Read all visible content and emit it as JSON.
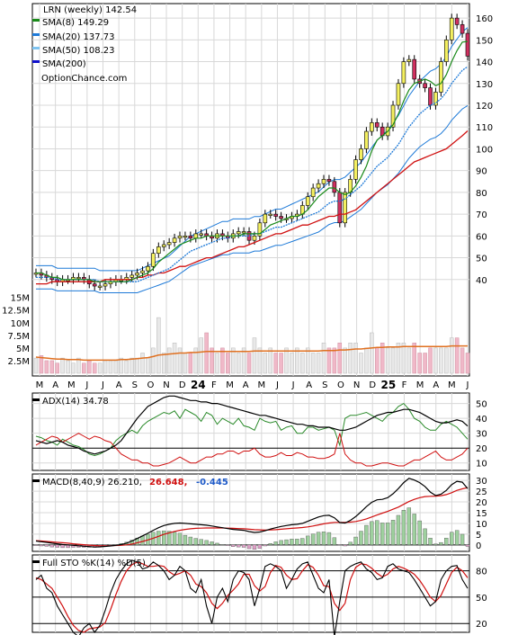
{
  "chart_data": {
    "type": "line",
    "symbol": "LRN",
    "legend": {
      "title": "LRN (weekly) 142.54",
      "sma8": "SMA(8) 149.29",
      "sma20": "SMA(20) 137.73",
      "sma50": "SMA(50) 108.23",
      "sma200": "SMA(200)",
      "site": "OptionChance.com"
    },
    "colors": {
      "sma8": "#1a8a1a",
      "sma20": "#1e7ad8",
      "sma50": "#7ec3f0",
      "sma200": "#1010cc",
      "sma200line": "#d01010",
      "bollinger": "#1e7ad8",
      "adx": "#000000",
      "diplus": "#2a8a2a",
      "diminus": "#d01010",
      "macd": "#000000",
      "signal": "#d01010",
      "hist_up": "#9ed09e",
      "hist_down": "#e0a0c8",
      "volume": "#f0b8c8",
      "volume_avg": "#e07020"
    },
    "price_ticks": [
      "160",
      "150",
      "140",
      "130",
      "120",
      "110",
      "100",
      "90",
      "80",
      "70",
      "60",
      "50",
      "40"
    ],
    "volume_ticks": [
      "15M",
      "12.5M",
      "10M",
      "7.5M",
      "5M",
      "2.5M"
    ],
    "month_labels": [
      "M",
      "A",
      "M",
      "J",
      "J",
      "A",
      "S",
      "O",
      "N",
      "D",
      "24",
      "F",
      "M",
      "A",
      "M",
      "J",
      "J",
      "A",
      "S",
      "O",
      "N",
      "D",
      "25",
      "F",
      "M",
      "A",
      "M",
      "J"
    ],
    "close": [
      43,
      42,
      41,
      40,
      39,
      40,
      40,
      41,
      41,
      40,
      38,
      37,
      37,
      38,
      39,
      40,
      40,
      41,
      42,
      43,
      44,
      46,
      52,
      55,
      56,
      57,
      59,
      60,
      60,
      59,
      61,
      61,
      60,
      59,
      61,
      60,
      59,
      61,
      62,
      62,
      58,
      60,
      66,
      70,
      70,
      69,
      68,
      68,
      69,
      70,
      74,
      78,
      82,
      84,
      86,
      85,
      80,
      66,
      80,
      86,
      95,
      100,
      108,
      112,
      110,
      106,
      110,
      120,
      130,
      140,
      141,
      132,
      130,
      128,
      120,
      126,
      140,
      150,
      160,
      157,
      153,
      142.54
    ],
    "sma8": [
      43,
      43,
      42,
      41,
      41,
      40,
      40,
      40,
      40,
      40,
      40,
      39,
      39,
      39,
      39,
      39,
      39,
      39,
      40,
      41,
      42,
      43,
      45,
      48,
      50,
      52,
      54,
      56,
      57,
      58,
      59,
      59,
      60,
      60,
      60,
      60,
      60,
      60,
      60,
      61,
      61,
      61,
      61,
      63,
      65,
      66,
      67,
      68,
      69,
      69,
      70,
      72,
      75,
      78,
      80,
      82,
      82,
      80,
      79,
      80,
      83,
      87,
      92,
      99,
      104,
      106,
      108,
      111,
      116,
      122,
      127,
      130,
      131,
      132,
      131,
      129,
      130,
      134,
      140,
      145,
      149,
      149.29
    ],
    "sma20": [
      41,
      41,
      41,
      41,
      40,
      40,
      40,
      40,
      40,
      40,
      40,
      40,
      39,
      39,
      39,
      39,
      39,
      39,
      39,
      39,
      40,
      41,
      42,
      43,
      44,
      45,
      47,
      49,
      51,
      53,
      54,
      55,
      56,
      57,
      58,
      59,
      59,
      60,
      60,
      60,
      60,
      61,
      61,
      62,
      63,
      64,
      64,
      65,
      66,
      67,
      68,
      69,
      70,
      71,
      73,
      75,
      76,
      76,
      77,
      79,
      81,
      83,
      86,
      89,
      92,
      94,
      96,
      99,
      102,
      106,
      110,
      113,
      116,
      118,
      120,
      121,
      123,
      126,
      130,
      133,
      136,
      137.73
    ],
    "sma50": [
      38,
      38,
      38,
      39,
      39,
      39,
      39,
      39,
      39,
      39,
      39,
      39,
      39,
      40,
      40,
      40,
      40,
      40,
      40,
      41,
      41,
      42,
      42,
      43,
      43,
      44,
      45,
      46,
      46,
      47,
      48,
      49,
      50,
      50,
      51,
      52,
      53,
      54,
      55,
      55,
      56,
      57,
      58,
      59,
      60,
      61,
      61,
      62,
      63,
      64,
      65,
      65,
      66,
      67,
      68,
      69,
      69,
      70,
      70,
      71,
      72,
      74,
      76,
      78,
      80,
      82,
      84,
      86,
      88,
      90,
      92,
      94,
      95,
      96,
      97,
      98,
      99,
      100,
      102,
      104,
      106,
      108.23
    ],
    "adx": [
      25,
      24,
      23,
      24,
      25,
      24,
      22,
      21,
      20,
      18,
      17,
      16,
      17,
      18,
      20,
      22,
      25,
      30,
      35,
      40,
      44,
      48,
      50,
      52,
      54,
      55,
      55,
      54,
      53,
      52,
      52,
      51,
      51,
      50,
      50,
      49,
      48,
      47,
      46,
      45,
      44,
      43,
      42,
      42,
      41,
      40,
      39,
      38,
      37,
      36,
      36,
      35,
      35,
      34,
      34,
      34,
      33,
      32,
      32,
      33,
      34,
      36,
      38,
      40,
      42,
      43,
      44,
      44,
      45,
      46,
      46,
      45,
      44,
      42,
      40,
      38,
      37,
      37,
      38,
      39,
      38,
      34.78
    ],
    "diplus": [
      28,
      27,
      25,
      24,
      22,
      26,
      24,
      22,
      21,
      19,
      16,
      15,
      16,
      18,
      20,
      25,
      28,
      30,
      32,
      30,
      35,
      38,
      40,
      42,
      44,
      43,
      45,
      40,
      46,
      44,
      42,
      38,
      44,
      42,
      36,
      40,
      38,
      36,
      40,
      35,
      34,
      32,
      40,
      38,
      37,
      38,
      32,
      34,
      35,
      30,
      30,
      34,
      34,
      32,
      33,
      34,
      32,
      22,
      40,
      42,
      42,
      43,
      44,
      42,
      40,
      38,
      42,
      44,
      48,
      50,
      46,
      40,
      38,
      34,
      32,
      32,
      36,
      38,
      36,
      34,
      30,
      26
    ],
    "diminus": [
      22,
      24,
      26,
      28,
      27,
      24,
      26,
      28,
      30,
      28,
      26,
      28,
      27,
      25,
      24,
      20,
      16,
      14,
      12,
      12,
      10,
      10,
      8,
      8,
      9,
      10,
      12,
      14,
      12,
      10,
      10,
      12,
      14,
      14,
      16,
      16,
      18,
      18,
      16,
      18,
      18,
      20,
      16,
      14,
      14,
      15,
      17,
      15,
      15,
      17,
      16,
      14,
      14,
      13,
      13,
      14,
      16,
      30,
      16,
      12,
      10,
      10,
      8,
      8,
      9,
      10,
      10,
      9,
      8,
      8,
      10,
      12,
      12,
      14,
      16,
      18,
      14,
      12,
      12,
      14,
      16,
      20
    ],
    "macd": [
      1.8,
      1.5,
      1.2,
      0.8,
      0.5,
      0.2,
      0.0,
      -0.2,
      -0.4,
      -0.6,
      -0.8,
      -1.0,
      -0.9,
      -0.7,
      -0.5,
      -0.2,
      0.2,
      0.8,
      1.8,
      3.0,
      4.2,
      5.4,
      6.8,
      8.0,
      9.0,
      9.6,
      10.0,
      10.2,
      10.0,
      9.8,
      9.6,
      9.4,
      9.2,
      8.8,
      8.4,
      8.0,
      7.6,
      7.2,
      7.0,
      6.8,
      6.2,
      5.8,
      6.0,
      6.6,
      7.4,
      8.0,
      8.6,
      9.0,
      9.4,
      9.6,
      10.0,
      11.0,
      12.0,
      13.0,
      13.6,
      13.8,
      12.6,
      10.4,
      10.2,
      11.4,
      13.2,
      15.4,
      17.8,
      19.8,
      21.0,
      21.2,
      22.0,
      23.8,
      26.2,
      29.0,
      31.0,
      30.2,
      29.0,
      27.2,
      24.6,
      23.0,
      23.6,
      25.4,
      28.0,
      29.6,
      29.2,
      26.21
    ],
    "signal": [
      2.0,
      1.8,
      1.6,
      1.4,
      1.2,
      1.0,
      0.8,
      0.5,
      0.3,
      0.1,
      -0.1,
      -0.3,
      -0.4,
      -0.4,
      -0.4,
      -0.3,
      -0.2,
      0.0,
      0.4,
      1.0,
      1.6,
      2.3,
      3.1,
      4.0,
      4.9,
      5.6,
      6.3,
      6.8,
      7.2,
      7.5,
      7.7,
      7.8,
      7.9,
      7.9,
      7.9,
      7.9,
      7.8,
      7.7,
      7.6,
      7.5,
      7.3,
      7.1,
      7.0,
      6.9,
      7.0,
      7.1,
      7.3,
      7.5,
      7.7,
      7.9,
      8.1,
      8.4,
      8.8,
      9.3,
      9.8,
      10.2,
      10.5,
      10.5,
      10.5,
      10.6,
      10.9,
      11.4,
      12.1,
      13.0,
      13.9,
      14.8,
      15.6,
      16.6,
      17.6,
      18.9,
      20.2,
      21.2,
      22.0,
      22.5,
      22.6,
      22.7,
      22.9,
      23.4,
      24.3,
      25.4,
      26.1,
      26.65
    ],
    "sto_k": [
      70,
      75,
      60,
      55,
      40,
      30,
      20,
      10,
      5,
      15,
      20,
      10,
      18,
      35,
      55,
      70,
      80,
      88,
      92,
      90,
      82,
      84,
      90,
      86,
      80,
      70,
      75,
      85,
      80,
      60,
      55,
      70,
      40,
      20,
      50,
      60,
      45,
      70,
      80,
      78,
      70,
      40,
      60,
      85,
      88,
      85,
      80,
      60,
      70,
      82,
      88,
      90,
      75,
      60,
      55,
      70,
      5,
      45,
      80,
      85,
      88,
      90,
      82,
      78,
      70,
      72,
      85,
      88,
      82,
      80,
      78,
      70,
      60,
      50,
      40,
      45,
      70,
      80,
      85,
      86,
      70,
      60
    ],
    "sto_d": [
      72,
      70,
      65,
      60,
      50,
      40,
      28,
      18,
      12,
      10,
      14,
      15,
      16,
      21,
      36,
      53,
      68,
      80,
      87,
      90,
      88,
      85,
      85,
      86,
      85,
      79,
      75,
      77,
      80,
      75,
      65,
      62,
      55,
      43,
      37,
      43,
      52,
      58,
      65,
      76,
      76,
      63,
      57,
      62,
      78,
      86,
      84,
      75,
      70,
      71,
      80,
      87,
      84,
      75,
      63,
      62,
      43,
      35,
      43,
      70,
      84,
      88,
      87,
      83,
      77,
      73,
      76,
      82,
      85,
      83,
      80,
      76,
      69,
      60,
      50,
      45,
      52,
      65,
      78,
      84,
      80,
      72
    ],
    "volume": [
      3,
      3.5,
      2.5,
      2.5,
      2,
      3,
      2.5,
      2,
      3,
      2,
      2.5,
      2,
      2,
      2.5,
      2.5,
      2.5,
      3,
      2.5,
      3,
      3,
      4,
      3,
      5,
      11,
      4,
      5,
      6,
      5,
      4,
      4,
      5,
      7,
      8,
      5,
      4,
      5,
      4,
      5,
      4,
      5,
      4,
      7,
      5,
      4,
      5,
      4,
      4,
      5,
      4,
      5,
      4,
      5,
      4,
      4,
      6,
      5,
      5,
      6,
      5,
      6,
      6,
      4,
      5,
      8,
      5,
      6,
      5,
      5,
      6,
      6,
      5,
      6,
      4,
      4,
      5,
      5,
      5,
      5,
      7,
      7,
      5,
      4
    ],
    "volume_avg": [
      3.2,
      3.1,
      3.0,
      2.9,
      2.8,
      2.8,
      2.7,
      2.7,
      2.7,
      2.6,
      2.6,
      2.6,
      2.6,
      2.6,
      2.6,
      2.6,
      2.7,
      2.7,
      2.8,
      2.9,
      3.0,
      3.1,
      3.3,
      3.6,
      3.7,
      3.8,
      3.9,
      4.0,
      4.0,
      4.1,
      4.1,
      4.2,
      4.3,
      4.3,
      4.3,
      4.3,
      4.3,
      4.3,
      4.3,
      4.3,
      4.3,
      4.4,
      4.4,
      4.4,
      4.4,
      4.4,
      4.4,
      4.4,
      4.4,
      4.4,
      4.4,
      4.4,
      4.4,
      4.4,
      4.5,
      4.5,
      4.5,
      4.6,
      4.6,
      4.7,
      4.8,
      4.8,
      4.9,
      5.0,
      5.1,
      5.1,
      5.2,
      5.2,
      5.2,
      5.3,
      5.3,
      5.3,
      5.3,
      5.3,
      5.3,
      5.3,
      5.3,
      5.3,
      5.4,
      5.4,
      5.4,
      5.4
    ],
    "adx_panel": {
      "label": "ADX(14) 34.78",
      "ticks": [
        "50",
        "40",
        "30",
        "20",
        "10"
      ]
    },
    "macd_panel": {
      "label": "MACD(8,40,9) 26.210,",
      "value_red": "26.648,",
      "value_blue": "-0.445",
      "ticks": [
        "30",
        "25",
        "20",
        "15",
        "10",
        "5",
        "0"
      ]
    },
    "sto_panel": {
      "label": "Full STO %K(14) %D(5)",
      "ticks": [
        "80",
        "50",
        "20"
      ]
    }
  }
}
